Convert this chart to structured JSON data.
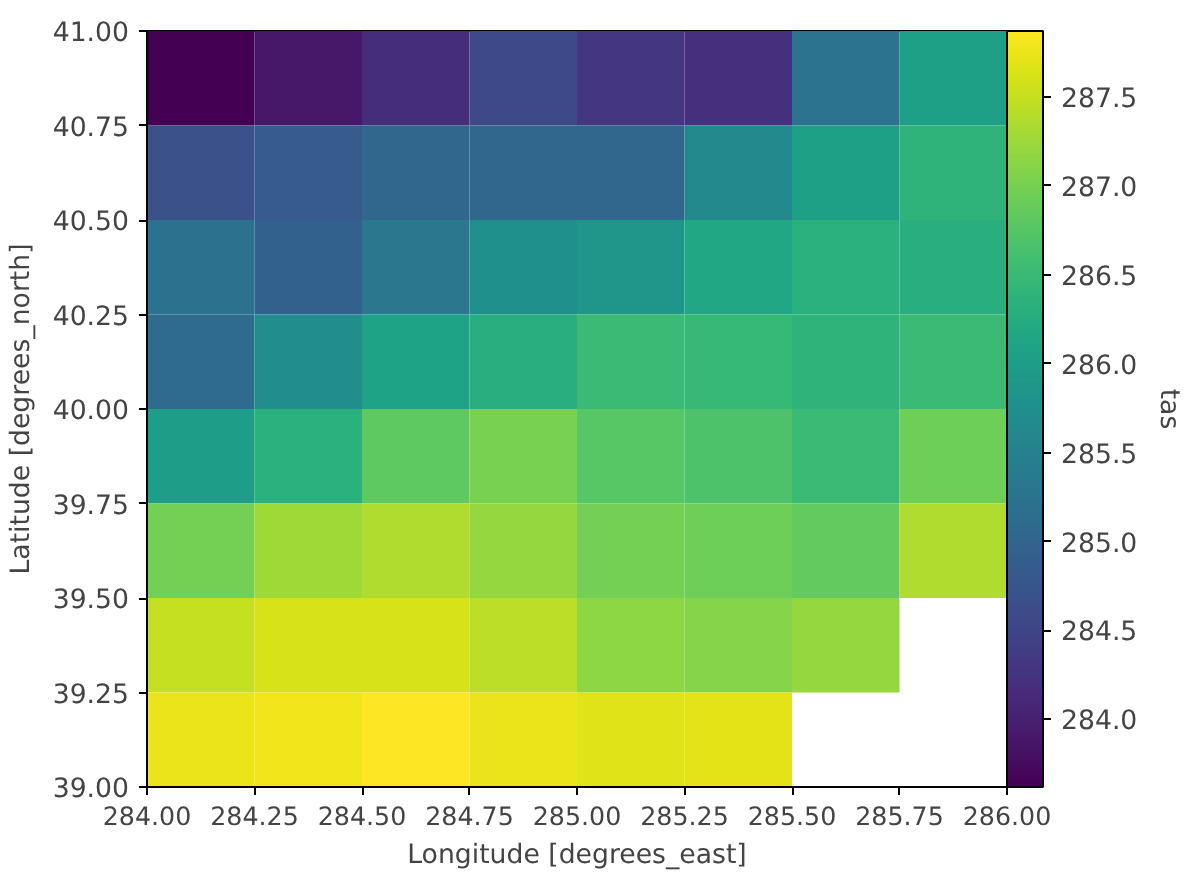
{
  "chart_data": {
    "type": "heatmap",
    "xlabel": "Longitude [degrees_east]",
    "ylabel": "Latitude [degrees_north]",
    "clabel": "tas",
    "xlim": [
      284.0,
      286.0
    ],
    "ylim": [
      39.0,
      41.0
    ],
    "xticks": [
      {
        "value": 284.0,
        "label": "284.00"
      },
      {
        "value": 284.25,
        "label": "284.25"
      },
      {
        "value": 284.5,
        "label": "284.50"
      },
      {
        "value": 284.75,
        "label": "284.75"
      },
      {
        "value": 285.0,
        "label": "285.00"
      },
      {
        "value": 285.25,
        "label": "285.25"
      },
      {
        "value": 285.5,
        "label": "285.50"
      },
      {
        "value": 285.75,
        "label": "285.75"
      },
      {
        "value": 286.0,
        "label": "286.00"
      }
    ],
    "yticks": [
      {
        "value": 39.0,
        "label": "39.00"
      },
      {
        "value": 39.25,
        "label": "39.25"
      },
      {
        "value": 39.5,
        "label": "39.50"
      },
      {
        "value": 39.75,
        "label": "39.75"
      },
      {
        "value": 40.0,
        "label": "40.00"
      },
      {
        "value": 40.25,
        "label": "40.25"
      },
      {
        "value": 40.5,
        "label": "40.50"
      },
      {
        "value": 40.75,
        "label": "40.75"
      },
      {
        "value": 41.0,
        "label": "41.00"
      }
    ],
    "clim": [
      283.62,
      287.87
    ],
    "cticks": [
      {
        "value": 284.0,
        "label": "284.0"
      },
      {
        "value": 284.5,
        "label": "284.5"
      },
      {
        "value": 285.0,
        "label": "285.0"
      },
      {
        "value": 285.5,
        "label": "285.5"
      },
      {
        "value": 286.0,
        "label": "286.0"
      },
      {
        "value": 286.5,
        "label": "286.5"
      },
      {
        "value": 287.0,
        "label": "287.0"
      },
      {
        "value": 287.5,
        "label": "287.5"
      }
    ],
    "cells": [
      [
        283.62,
        283.9,
        284.17,
        284.55,
        284.3,
        284.2,
        285.24,
        286.04
      ],
      [
        284.68,
        284.85,
        285.02,
        285.02,
        285.02,
        285.62,
        286.04,
        286.38
      ],
      [
        285.2,
        284.94,
        285.32,
        285.75,
        285.87,
        286.17,
        286.34,
        286.3
      ],
      [
        285.11,
        285.7,
        286.08,
        286.3,
        286.51,
        286.47,
        286.38,
        286.51
      ],
      [
        286.0,
        286.34,
        286.81,
        287.02,
        286.77,
        286.68,
        286.51,
        286.94
      ],
      [
        286.98,
        287.27,
        287.36,
        287.19,
        286.98,
        286.94,
        286.85,
        287.36
      ],
      [
        287.49,
        287.62,
        287.62,
        287.45,
        287.15,
        287.1,
        287.19,
        null
      ],
      [
        287.74,
        287.78,
        287.87,
        287.74,
        287.66,
        287.7,
        null,
        null
      ]
    ]
  }
}
